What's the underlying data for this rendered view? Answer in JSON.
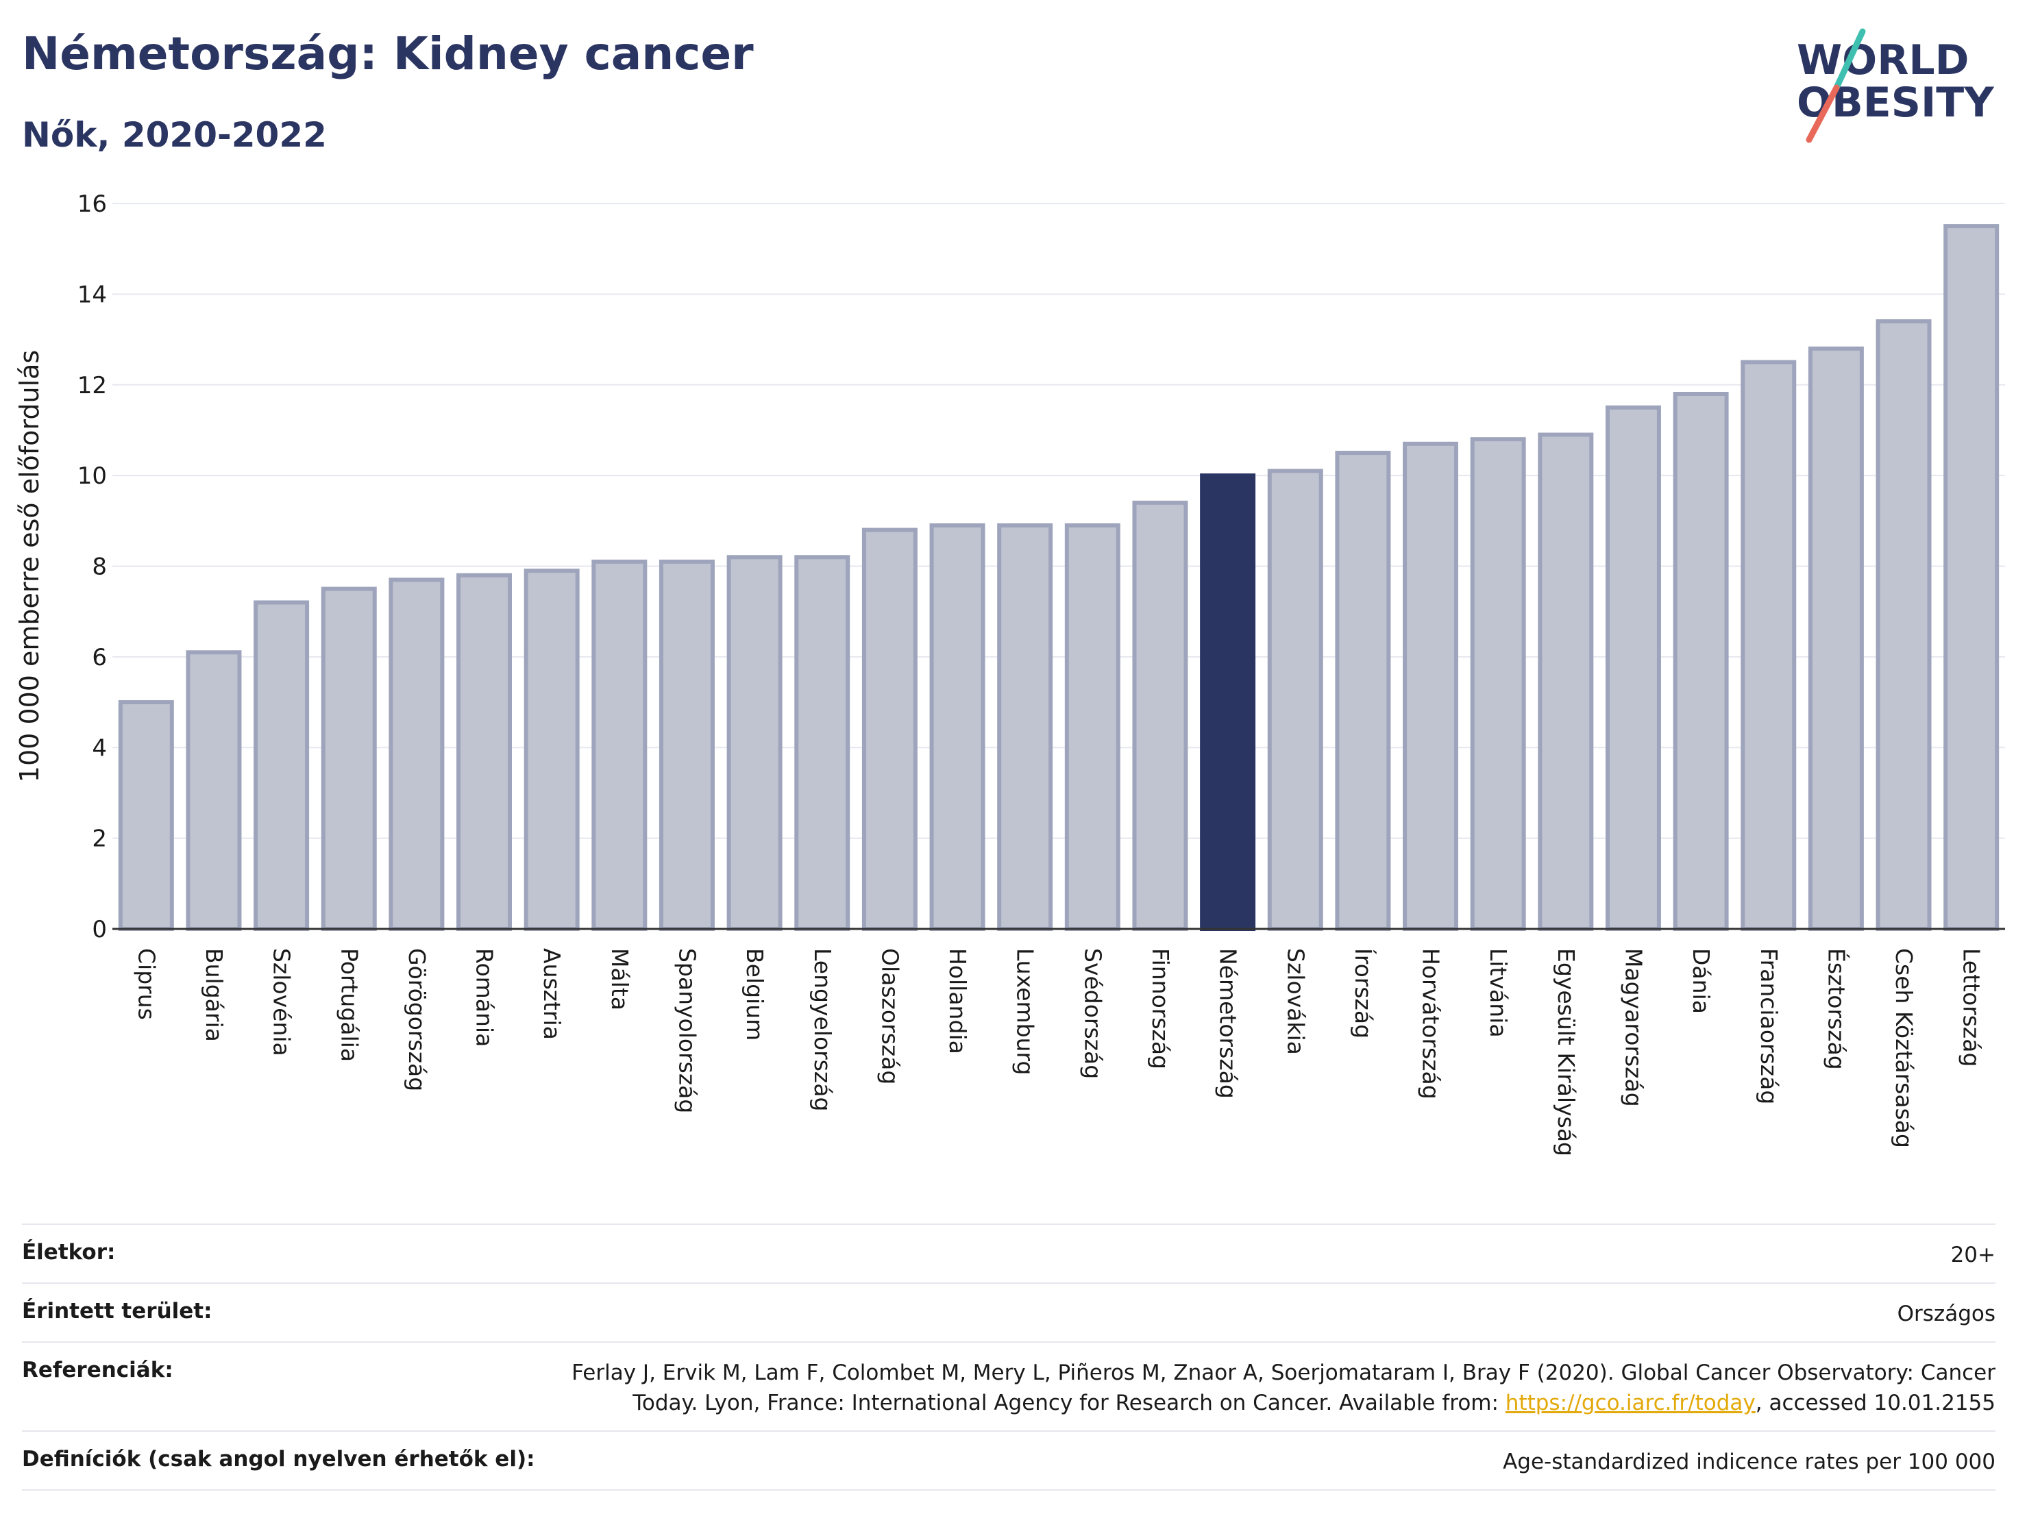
{
  "header": {
    "title": "Németország: Kidney cancer",
    "subtitle": "Nők, 2020-2022",
    "logo_line1": "WORLD",
    "logo_line2": "OBESITY"
  },
  "chart_data": {
    "type": "bar",
    "title": "Németország: Kidney cancer",
    "subtitle": "Nők, 2020-2022",
    "ylabel": "100 000 emberre eső előfordulás",
    "xlabel": "",
    "ylim": [
      0,
      16
    ],
    "yticks": [
      0,
      2,
      4,
      6,
      8,
      10,
      12,
      14,
      16
    ],
    "grid": true,
    "categories": [
      "Ciprus",
      "Bulgária",
      "Szlovénia",
      "Portugália",
      "Görögország",
      "Románia",
      "Ausztria",
      "Málta",
      "Spanyolország",
      "Belgium",
      "Lengyelország",
      "Olaszország",
      "Hollandia",
      "Luxemburg",
      "Svédország",
      "Finnország",
      "Németország",
      "Szlovákia",
      "Írország",
      "Horvátország",
      "Litvánia",
      "Egyesült Királyság",
      "Magyarország",
      "Dánia",
      "Franciaország",
      "Észtország",
      "Cseh Köztársaság",
      "Lettország"
    ],
    "values": [
      5.0,
      6.1,
      7.2,
      7.5,
      7.7,
      7.8,
      7.9,
      8.1,
      8.1,
      8.2,
      8.2,
      8.8,
      8.9,
      8.9,
      8.9,
      9.4,
      10.0,
      10.1,
      10.5,
      10.7,
      10.8,
      10.9,
      11.5,
      11.8,
      12.5,
      12.8,
      13.4,
      15.5
    ],
    "highlight": "Németország",
    "colors": {
      "bar": "#c0c4d1",
      "bar_border": "#9ea4bb",
      "highlight": "#2b3562",
      "axis": "#333333",
      "grid": "#e6e8ef"
    }
  },
  "info": {
    "rows": [
      {
        "key": "Életkor:",
        "value": "20+"
      },
      {
        "key": "Érintett terület:",
        "value": "Országos"
      },
      {
        "key": "Referenciák:",
        "value_prefix": "Ferlay J, Ervik M, Lam F, Colombet M, Mery L, Piñeros M, Znaor A, Soerjomataram I, Bray F (2020). Global Cancer Observatory: Cancer Today. Lyon, France: International Agency for Research on Cancer. Available from: ",
        "link": "https://gco.iarc.fr/today",
        "value_suffix": ", accessed 10.01.2155"
      },
      {
        "key": "Definíciók (csak angol nyelven érhetők el):",
        "value": "Age-standardized indicence rates per 100 000"
      }
    ]
  }
}
